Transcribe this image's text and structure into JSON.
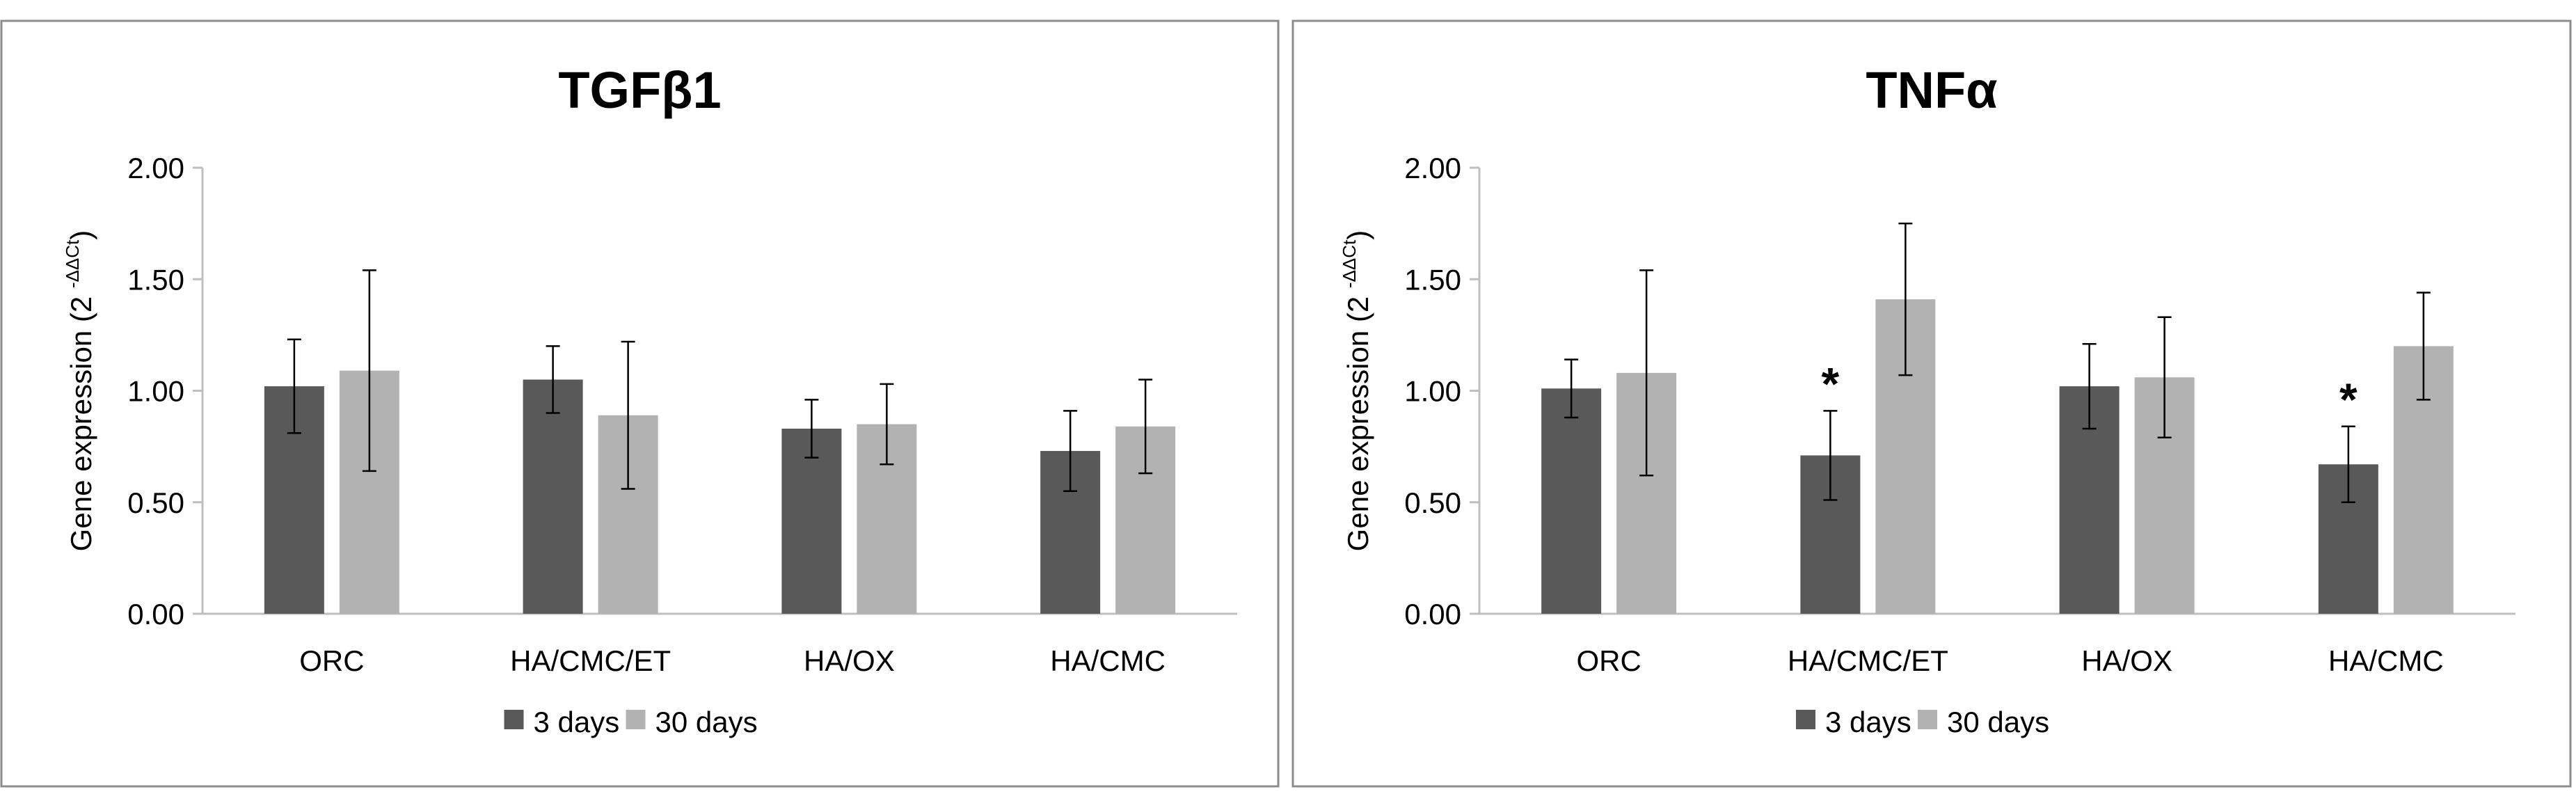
{
  "colors": {
    "series_3days": "#595959",
    "series_30days": "#b2b2b2",
    "axis": "#bfbfbf",
    "text": "#000000",
    "panel_border": "#8c8c8c"
  },
  "chart_data": [
    {
      "type": "bar",
      "title": "TGFβ1",
      "ylabel": "Gene expression (2",
      "ylabel_sup": "-ΔΔCt",
      "ylabel_close": ")",
      "ylim": [
        0,
        2
      ],
      "yticks": [
        "0.00",
        "0.50",
        "1.00",
        "1.50",
        "2.00"
      ],
      "ytick_values": [
        0,
        0.5,
        1,
        1.5,
        2
      ],
      "categories": [
        "ORC",
        "HA/CMC/ET",
        "HA/OX",
        "HA/CMC"
      ],
      "series": [
        {
          "name": "3 days",
          "values": [
            1.02,
            1.05,
            0.83,
            0.73
          ],
          "errors": [
            0.21,
            0.15,
            0.13,
            0.18
          ]
        },
        {
          "name": "30 days",
          "values": [
            1.09,
            0.89,
            0.85,
            0.84
          ],
          "errors": [
            0.45,
            0.33,
            0.18,
            0.21
          ]
        }
      ],
      "annotations": [],
      "legend": "bottom-center"
    },
    {
      "type": "bar",
      "title": "TNFα",
      "ylabel": "Gene expression (2",
      "ylabel_sup": "-ΔΔCt",
      "ylabel_close": ")",
      "ylim": [
        0,
        2
      ],
      "yticks": [
        "0.00",
        "0.50",
        "1.00",
        "1.50",
        "2.00"
      ],
      "ytick_values": [
        0,
        0.5,
        1,
        1.5,
        2
      ],
      "categories": [
        "ORC",
        "HA/CMC/ET",
        "HA/OX",
        "HA/CMC"
      ],
      "series": [
        {
          "name": "3 days",
          "values": [
            1.01,
            0.71,
            1.02,
            0.67
          ],
          "errors": [
            0.13,
            0.2,
            0.19,
            0.17
          ]
        },
        {
          "name": "30 days",
          "values": [
            1.08,
            1.41,
            1.06,
            1.2
          ],
          "errors": [
            0.46,
            0.34,
            0.27,
            0.24
          ]
        }
      ],
      "annotations": [
        {
          "text": "*",
          "category": 1,
          "series": 0
        },
        {
          "text": "*",
          "category": 3,
          "series": 0
        }
      ],
      "legend": "bottom-center"
    }
  ]
}
